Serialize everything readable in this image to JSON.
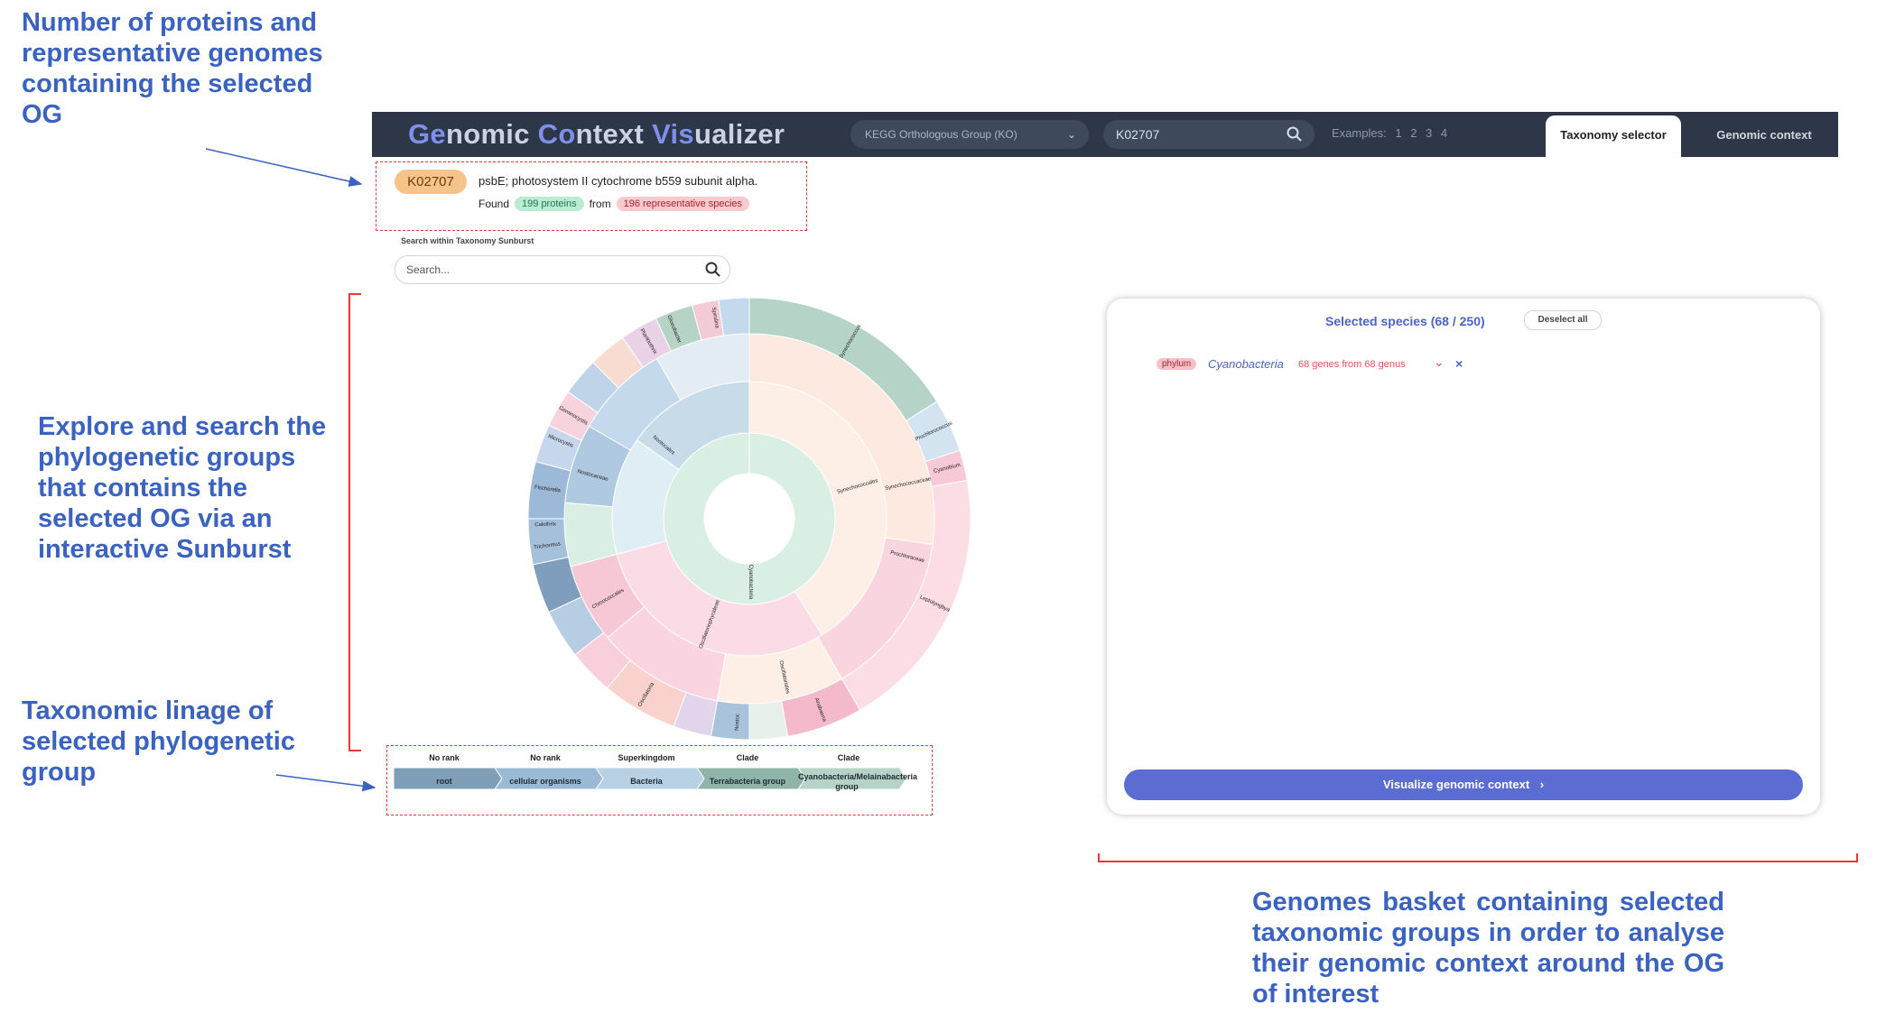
{
  "annotations": {
    "og_count": "Number of proteins and representative genomes containing the selected OG",
    "explore": "Explore and search the phylogenetic groups that contains the selected OG via an interactive Sunburst",
    "lineage": "Taxonomic linage of selected phylogenetic group",
    "basket": "Genomes basket containing selected taxonomic groups in order to analyse their genomic context around the OG of interest"
  },
  "header": {
    "logo_parts": [
      {
        "text": "Ge",
        "hl": true
      },
      {
        "text": "nomic ",
        "hl": false
      },
      {
        "text": "Co",
        "hl": true
      },
      {
        "text": "ntext ",
        "hl": false
      },
      {
        "text": "Vis",
        "hl": true
      },
      {
        "text": "ualizer",
        "hl": false
      }
    ],
    "select_label": "KEGG Orthologous Group (KO)",
    "search_value": "K02707",
    "examples_label": "Examples:",
    "examples": [
      "1",
      "2",
      "3",
      "4"
    ],
    "tabs": [
      "Taxonomy selector",
      "Genomic context"
    ]
  },
  "og": {
    "id": "K02707",
    "description": "psbE; photosystem II cytochrome b559 subunit alpha.",
    "found_label": "Found",
    "proteins": "199 proteins",
    "from_label": "from",
    "species": "196 representative species"
  },
  "sunburst_search": {
    "label": "Search within Taxonomy Sunburst",
    "placeholder": "Search..."
  },
  "lineage": [
    {
      "rank": "No rank",
      "name": "root"
    },
    {
      "rank": "No rank",
      "name": "cellular organisms"
    },
    {
      "rank": "Superkingdom",
      "name": "Bacteria"
    },
    {
      "rank": "Clade",
      "name": "Terrabacteria group"
    },
    {
      "rank": "Clade",
      "name": "Cyanobacteria/Melainabacteria group"
    }
  ],
  "basket": {
    "title": "Selected species (68 / 250)",
    "deselect": "Deselect all",
    "items": [
      {
        "rank": "phylum",
        "name": "Cyanobacteria",
        "genes": "68 genes from 68 genus"
      }
    ],
    "button": "Visualize genomic context"
  },
  "sunburst_labels": {
    "center": "Cyanobacteria",
    "ring2": [
      "Synechococcales",
      "Oscillatoriophycideae",
      "Nostocales"
    ],
    "ring3": [
      "Synechococcaceae",
      "Prochloraceae",
      "Oscillatoriales",
      "Chroococcales",
      "Nostocaceae"
    ],
    "ring4": [
      "Synechococcus",
      "Prochlorococcus",
      "Cyanobium",
      "Leptolyngbya",
      "Anabaena",
      "Nostoc",
      "Trichormus",
      "Fischerella",
      "Calothrix",
      "Microcystis",
      "Geminocystis",
      "Oscillatoria",
      "Planktothrix",
      "Gloeobacter",
      "Spirulina"
    ]
  },
  "colors": {
    "header_bg": "#2d3747",
    "accent": "#5b6dd2",
    "annotation": "#3a62c0",
    "red": "#e53935"
  }
}
